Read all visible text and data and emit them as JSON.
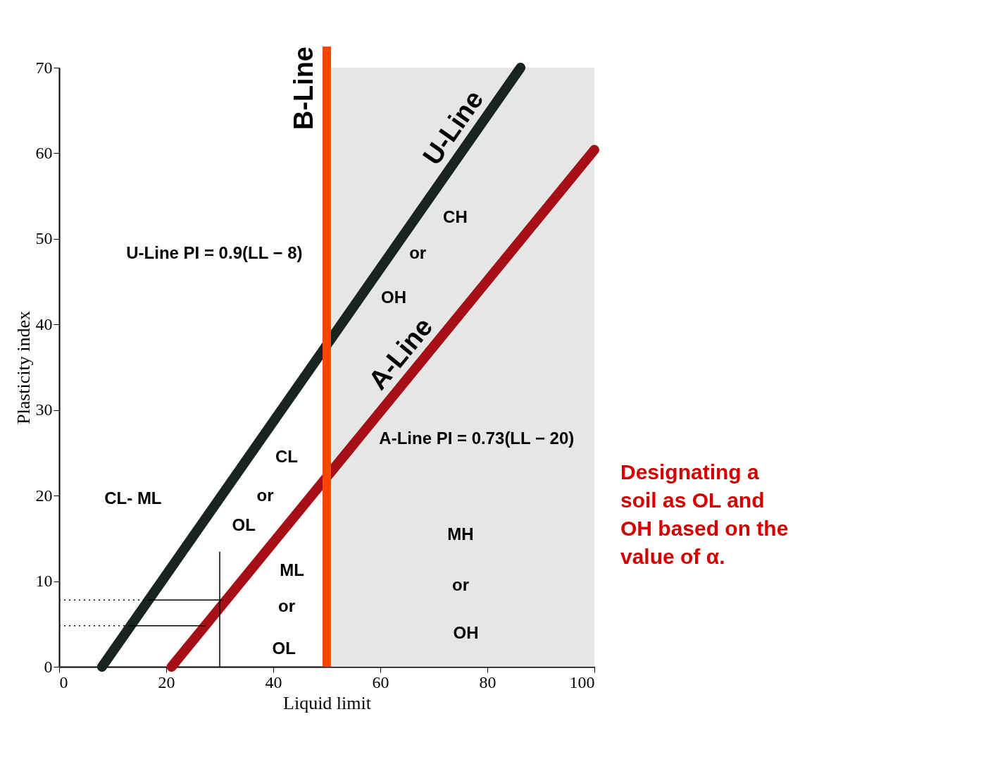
{
  "chart_data": {
    "type": "line",
    "xlabel": "Liquid limit",
    "ylabel": "Plasticity index",
    "xlim": [
      0,
      100
    ],
    "ylim": [
      0,
      70
    ],
    "xticks": [
      0,
      20,
      40,
      60,
      80,
      100
    ],
    "yticks": [
      0,
      10,
      20,
      30,
      40,
      50,
      60,
      70
    ],
    "grid": false,
    "series": [
      {
        "name": "U-Line",
        "color": "#17241f",
        "x": [
          8,
          86.2
        ],
        "values": [
          0,
          70
        ]
      },
      {
        "name": "A-Line",
        "color": "#a50f15",
        "x": [
          21,
          100
        ],
        "values": [
          0,
          60.4
        ]
      },
      {
        "color": "#000000",
        "line_style": "dotted",
        "x": [
          0,
          16.7
        ],
        "values": [
          7.8,
          7.8
        ]
      },
      {
        "color": "#000000",
        "x": [
          16.7,
          30.5
        ],
        "values": [
          7.8,
          7.8
        ]
      },
      {
        "color": "#000000",
        "line_style": "dotted",
        "x": [
          0,
          13.3
        ],
        "values": [
          4.8,
          4.8
        ]
      },
      {
        "color": "#000000",
        "x": [
          13.3,
          27.3
        ],
        "values": [
          4.8,
          4.8
        ]
      },
      {
        "color": "#000000",
        "x": [
          30,
          30
        ],
        "values": [
          0,
          13.4
        ]
      }
    ],
    "ref_lines": [
      {
        "axis": "x",
        "value": 50,
        "label": "B-Line",
        "color": "#ff4500"
      }
    ],
    "bands": [
      {
        "axis": "x",
        "from": 50,
        "to": 100,
        "color": "#e6e6e6"
      }
    ],
    "annotations": [
      "U-Line PI = 0.9(LL − 8)",
      "A-Line PI = 0.73(LL − 20)",
      "CH",
      "or",
      "OH",
      "CL",
      "or",
      "OL",
      "ML",
      "or",
      "OL",
      "MH",
      "or",
      "OH",
      "CL- ML",
      "Designating a soil as OL and OH based on the value of α."
    ]
  }
}
